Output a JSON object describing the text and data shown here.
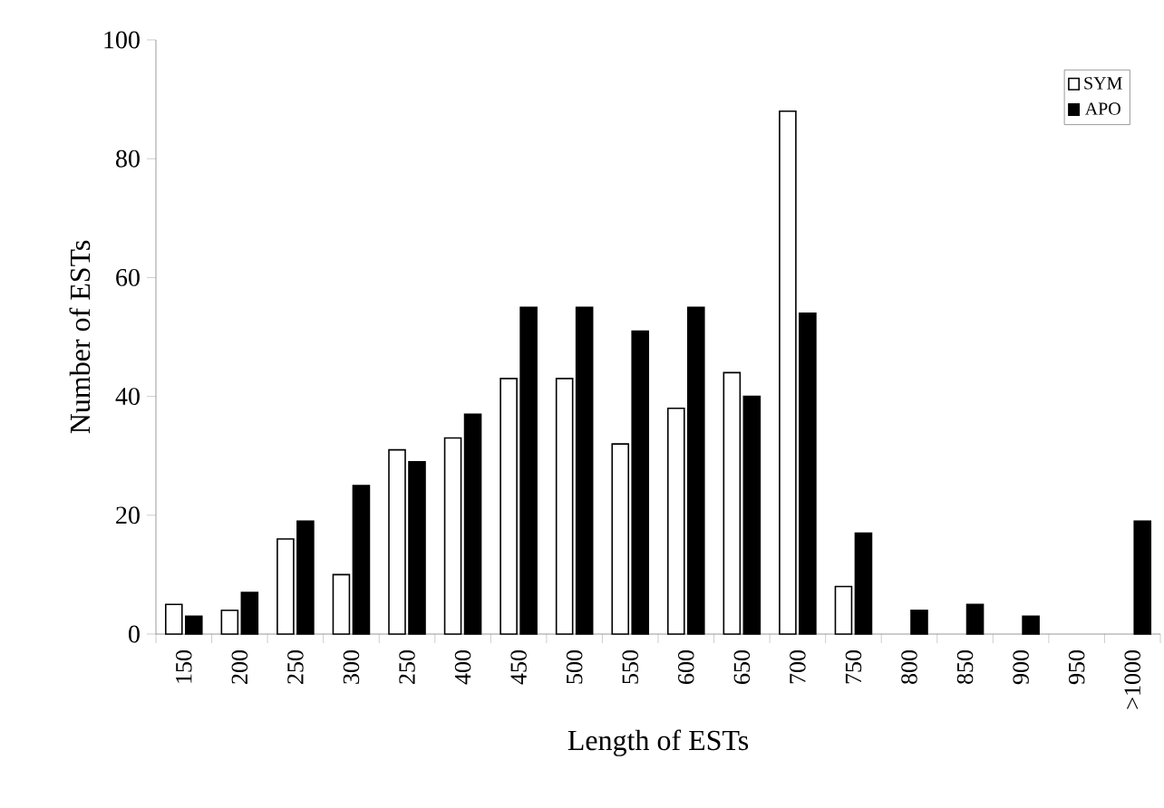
{
  "chart_data": {
    "type": "bar",
    "xlabel": "Length of ESTs",
    "ylabel": "Number of ESTs",
    "categories": [
      "150",
      "200",
      "250",
      "300",
      "250",
      "400",
      "450",
      "500",
      "550",
      "600",
      "650",
      "700",
      "750",
      "800",
      "850",
      "900",
      "950",
      ">1000"
    ],
    "series": [
      {
        "name": "SYM",
        "color": "#ffffff",
        "values": [
          5,
          4,
          16,
          10,
          31,
          33,
          43,
          43,
          32,
          38,
          44,
          88,
          8,
          null,
          null,
          null,
          null,
          null
        ]
      },
      {
        "name": "APO",
        "color": "#000000",
        "values": [
          3,
          7,
          19,
          25,
          29,
          37,
          55,
          55,
          51,
          55,
          40,
          54,
          17,
          4,
          5,
          3,
          null,
          19
        ]
      }
    ],
    "ylim": [
      0,
      100
    ],
    "yticks": [
      0,
      20,
      40,
      60,
      80,
      100
    ],
    "grid": false,
    "legend": "top right"
  }
}
